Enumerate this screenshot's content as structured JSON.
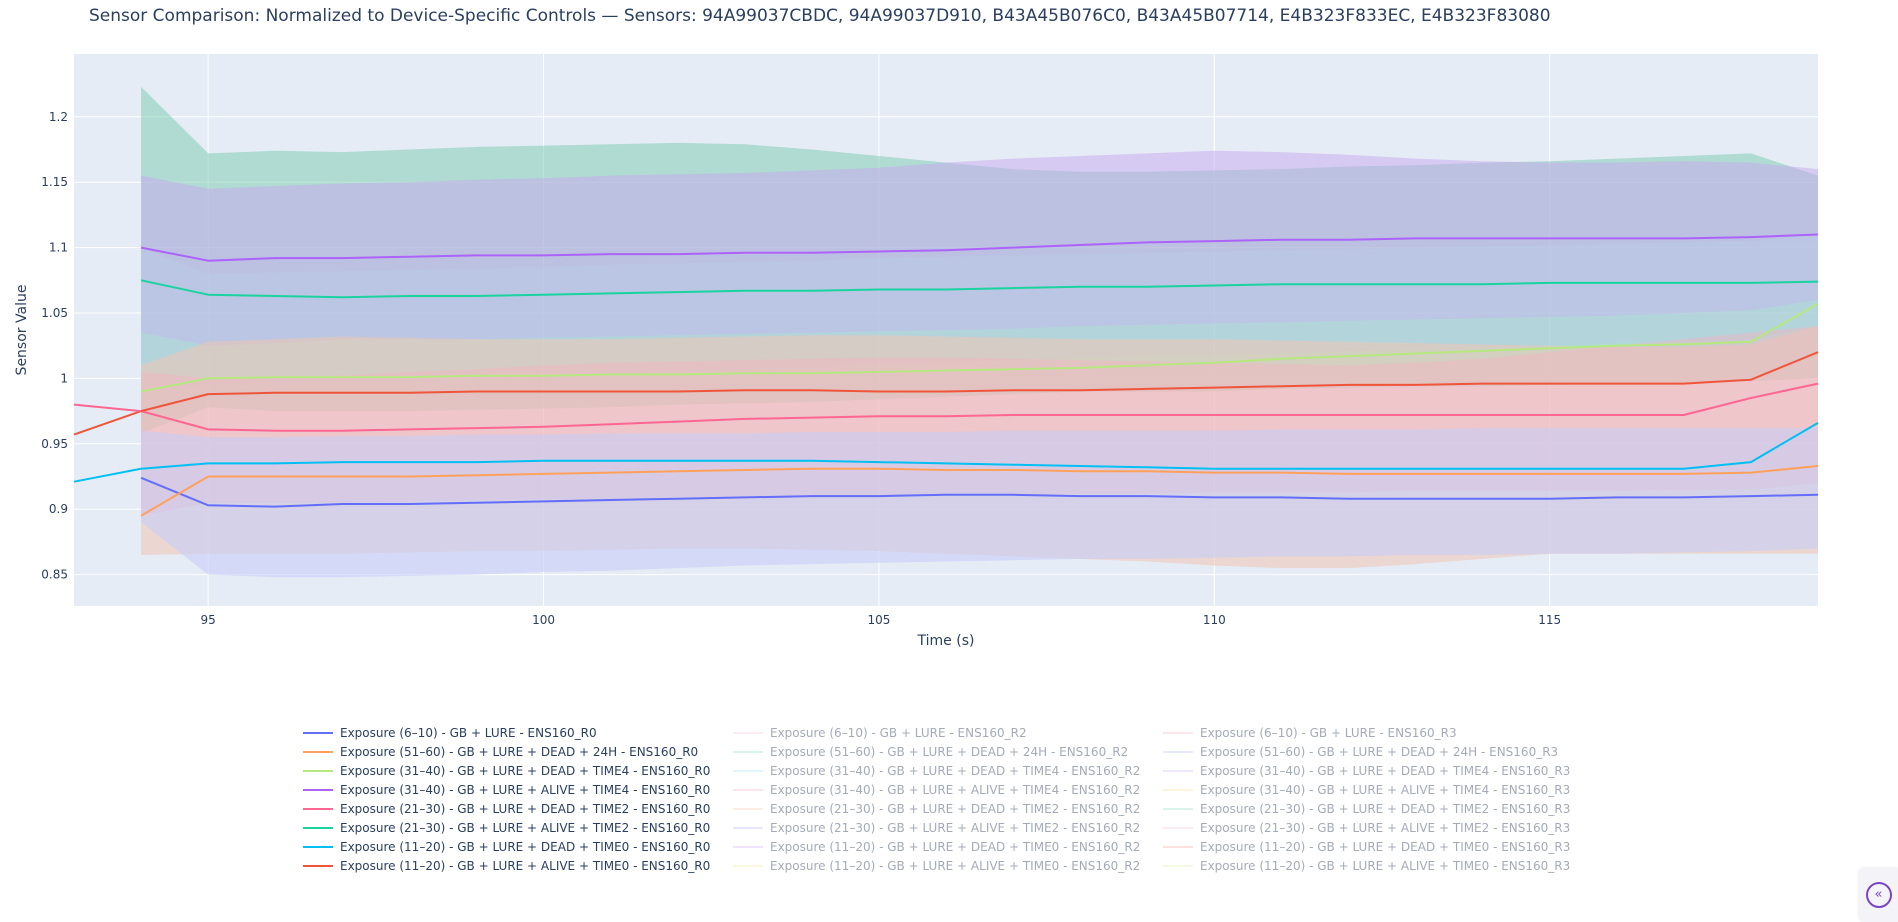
{
  "chart_data": {
    "type": "line",
    "title": "Sensor Comparison: Normalized to Device-Specific Controls — Sensors: 94A99037CBDC, 94A99037D910, B43A45B076C0, B43A45B07714, E4B323F833EC, E4B323F83080",
    "xlabel": "Time (s)",
    "ylabel": "Sensor Value",
    "xlim": [
      93,
      119
    ],
    "ylim": [
      0.826,
      1.248
    ],
    "xticks": [
      95,
      100,
      105,
      110,
      115
    ],
    "xtick_labels": [
      "95",
      "100",
      "105",
      "110",
      "115"
    ],
    "yticks": [
      0.85,
      0.9,
      0.95,
      1.0,
      1.05,
      1.1,
      1.15,
      1.2
    ],
    "ytick_labels": [
      "0.85",
      "0.9",
      "0.95",
      "1",
      "1.05",
      "1.1",
      "1.15",
      "1.2"
    ],
    "grid": true,
    "legend_position": "bottom",
    "x": [
      94,
      95,
      96,
      97,
      98,
      99,
      100,
      101,
      102,
      103,
      104,
      105,
      106,
      107,
      108,
      109,
      110,
      111,
      112,
      113,
      114,
      115,
      116,
      117,
      118,
      119
    ],
    "bands": [
      {
        "color": "#7cc9ad",
        "opacity": 0.5,
        "upper": [
          1.223,
          1.172,
          1.174,
          1.173,
          1.175,
          1.177,
          1.178,
          1.179,
          1.18,
          1.179,
          1.175,
          1.17,
          1.165,
          1.16,
          1.158,
          1.158,
          1.159,
          1.16,
          1.162,
          1.163,
          1.165,
          1.166,
          1.168,
          1.17,
          1.172,
          1.155
        ],
        "lower": [
          0.958,
          0.978,
          0.975,
          0.975,
          0.975,
          0.976,
          0.977,
          0.978,
          0.98,
          0.981,
          0.982,
          0.984,
          0.986,
          0.988,
          0.99,
          0.99,
          0.99,
          0.992,
          0.993,
          0.994,
          0.994,
          0.995,
          0.996,
          0.997,
          0.998,
          1.0
        ]
      },
      {
        "color": "#c8a8f0",
        "opacity": 0.5,
        "upper": [
          1.155,
          1.145,
          1.147,
          1.149,
          1.15,
          1.152,
          1.153,
          1.155,
          1.156,
          1.157,
          1.159,
          1.161,
          1.165,
          1.168,
          1.17,
          1.172,
          1.174,
          1.173,
          1.171,
          1.168,
          1.166,
          1.165,
          1.165,
          1.166,
          1.165,
          1.16
        ],
        "lower": [
          1.035,
          1.025,
          1.027,
          1.03,
          1.03,
          1.03,
          1.031,
          1.032,
          1.033,
          1.034,
          1.035,
          1.036,
          1.037,
          1.038,
          1.04,
          1.041,
          1.042,
          1.043,
          1.044,
          1.045,
          1.046,
          1.047,
          1.048,
          1.05,
          1.052,
          1.06
        ]
      },
      {
        "color": "#b8cde6",
        "opacity": 0.45,
        "upper": [
          1.1,
          1.08,
          1.081,
          1.082,
          1.083,
          1.084,
          1.085,
          1.087,
          1.088,
          1.089,
          1.09,
          1.092,
          1.093,
          1.094,
          1.095,
          1.096,
          1.097,
          1.098,
          1.099,
          1.1,
          1.101,
          1.102,
          1.103,
          1.104,
          1.105,
          1.11
        ],
        "lower": [
          0.99,
          0.995,
          0.996,
          0.997,
          0.998,
          1.0,
          1.001,
          1.003,
          1.005,
          1.007,
          1.009,
          1.011,
          1.012,
          1.014,
          1.016,
          1.017,
          1.018,
          1.019,
          1.021,
          1.022,
          1.023,
          1.025,
          1.027,
          1.028,
          1.03,
          1.04
        ]
      },
      {
        "color": "#f1c4b3",
        "opacity": 0.55,
        "upper": [
          1.01,
          1.028,
          1.03,
          1.032,
          1.031,
          1.03,
          1.03,
          1.03,
          1.031,
          1.032,
          1.033,
          1.033,
          1.032,
          1.031,
          1.03,
          1.03,
          1.03,
          1.029,
          1.028,
          1.027,
          1.026,
          1.025,
          1.024,
          1.024,
          1.026,
          1.04
        ],
        "lower": [
          0.865,
          0.866,
          0.866,
          0.866,
          0.867,
          0.868,
          0.868,
          0.869,
          0.87,
          0.87,
          0.869,
          0.868,
          0.866,
          0.864,
          0.862,
          0.86,
          0.857,
          0.855,
          0.855,
          0.858,
          0.862,
          0.866,
          0.866,
          0.866,
          0.866,
          0.866
        ]
      },
      {
        "color": "#f5b4c0",
        "opacity": 0.45,
        "upper": [
          1.005,
          1.0,
          1.0,
          1.002,
          1.005,
          1.007,
          1.01,
          1.012,
          1.013,
          1.014,
          1.015,
          1.016,
          1.016,
          1.015,
          1.014,
          1.013,
          1.012,
          1.011,
          1.01,
          1.012,
          1.015,
          1.02,
          1.025,
          1.03,
          1.035,
          1.04
        ],
        "lower": [
          0.895,
          0.905,
          0.905,
          0.905,
          0.906,
          0.907,
          0.908,
          0.908,
          0.909,
          0.909,
          0.91,
          0.91,
          0.911,
          0.911,
          0.912,
          0.912,
          0.913,
          0.913,
          0.913,
          0.914,
          0.914,
          0.914,
          0.914,
          0.915,
          0.915,
          0.92
        ]
      },
      {
        "color": "#c6cdf6",
        "opacity": 0.6,
        "upper": [
          0.96,
          0.955,
          0.955,
          0.956,
          0.956,
          0.957,
          0.957,
          0.958,
          0.958,
          0.958,
          0.959,
          0.959,
          0.959,
          0.96,
          0.96,
          0.96,
          0.96,
          0.961,
          0.961,
          0.961,
          0.962,
          0.962,
          0.962,
          0.962,
          0.962,
          0.962
        ],
        "lower": [
          0.89,
          0.85,
          0.848,
          0.848,
          0.849,
          0.85,
          0.852,
          0.853,
          0.855,
          0.857,
          0.858,
          0.859,
          0.86,
          0.861,
          0.862,
          0.862,
          0.863,
          0.864,
          0.864,
          0.865,
          0.865,
          0.866,
          0.866,
          0.867,
          0.868,
          0.87
        ]
      }
    ],
    "series": [
      {
        "name": "Exposure (6–10) - GB + LURE - ENS160_R0",
        "color": "#636efa",
        "visible": true,
        "y": [
          0.924,
          0.903,
          0.902,
          0.904,
          0.904,
          0.905,
          0.906,
          0.907,
          0.908,
          0.909,
          0.91,
          0.91,
          0.911,
          0.911,
          0.91,
          0.91,
          0.909,
          0.909,
          0.908,
          0.908,
          0.908,
          0.908,
          0.909,
          0.909,
          0.91,
          0.911
        ]
      },
      {
        "name": "Exposure (51–60) - GB + LURE + DEAD + 24H - ENS160_R0",
        "color": "#ffa15a",
        "visible": true,
        "y": [
          0.895,
          0.925,
          0.925,
          0.925,
          0.925,
          0.926,
          0.927,
          0.928,
          0.929,
          0.93,
          0.931,
          0.931,
          0.93,
          0.93,
          0.929,
          0.929,
          0.928,
          0.928,
          0.927,
          0.927,
          0.927,
          0.927,
          0.927,
          0.927,
          0.928,
          0.933
        ]
      },
      {
        "name": "Exposure (31–40) - GB + LURE + DEAD + TIME4 - ENS160_R0",
        "color": "#b6e880",
        "visible": true,
        "y": [
          0.99,
          1.0,
          1.001,
          1.001,
          1.001,
          1.002,
          1.002,
          1.003,
          1.003,
          1.004,
          1.004,
          1.005,
          1.006,
          1.007,
          1.008,
          1.01,
          1.012,
          1.015,
          1.017,
          1.019,
          1.021,
          1.023,
          1.025,
          1.026,
          1.028,
          1.057
        ]
      },
      {
        "name": "Exposure (31–40) - GB + LURE + ALIVE + TIME4 - ENS160_R0",
        "color": "#ab63fa",
        "visible": true,
        "y": [
          1.1,
          1.09,
          1.092,
          1.092,
          1.093,
          1.094,
          1.094,
          1.095,
          1.095,
          1.096,
          1.096,
          1.097,
          1.098,
          1.1,
          1.102,
          1.104,
          1.105,
          1.106,
          1.106,
          1.107,
          1.107,
          1.107,
          1.107,
          1.107,
          1.108,
          1.11
        ]
      },
      {
        "name": "Exposure (21–30) - GB + LURE + DEAD + TIME2 - ENS160_R0",
        "color": "#ff6692",
        "visible": true,
        "y": [
          0.975,
          0.961,
          0.96,
          0.96,
          0.961,
          0.962,
          0.963,
          0.965,
          0.967,
          0.969,
          0.97,
          0.971,
          0.971,
          0.972,
          0.972,
          0.972,
          0.972,
          0.972,
          0.972,
          0.972,
          0.972,
          0.972,
          0.972,
          0.972,
          0.985,
          0.996
        ]
      },
      {
        "name": "Exposure (21–30) - GB + LURE + ALIVE + TIME2 - ENS160_R0",
        "color": "#19d3a0",
        "visible": true,
        "y": [
          1.075,
          1.064,
          1.063,
          1.062,
          1.063,
          1.063,
          1.064,
          1.065,
          1.066,
          1.067,
          1.067,
          1.068,
          1.068,
          1.069,
          1.07,
          1.07,
          1.071,
          1.072,
          1.072,
          1.072,
          1.072,
          1.073,
          1.073,
          1.073,
          1.073,
          1.074
        ]
      },
      {
        "name": "Exposure (11–20) - GB + LURE + DEAD + TIME0 - ENS160_R0",
        "color": "#00c0f3",
        "visible": true,
        "y": [
          0.931,
          0.935,
          0.935,
          0.936,
          0.936,
          0.936,
          0.937,
          0.937,
          0.937,
          0.937,
          0.937,
          0.936,
          0.935,
          0.934,
          0.933,
          0.932,
          0.931,
          0.931,
          0.931,
          0.931,
          0.931,
          0.931,
          0.931,
          0.931,
          0.936,
          0.966
        ]
      },
      {
        "name": "Exposure (11–20) - GB + LURE + ALIVE + TIME0 - ENS160_R0",
        "color": "#ef553b",
        "visible": true,
        "y": [
          0.975,
          0.988,
          0.989,
          0.989,
          0.989,
          0.99,
          0.99,
          0.99,
          0.99,
          0.991,
          0.991,
          0.99,
          0.99,
          0.991,
          0.991,
          0.992,
          0.993,
          0.994,
          0.995,
          0.995,
          0.996,
          0.996,
          0.996,
          0.996,
          0.999,
          1.02
        ]
      },
      {
        "name": "Exposure (6–10) - GB + LURE - ENS160_R2",
        "color": "#f9c8ea",
        "visible": false
      },
      {
        "name": "Exposure (51–60) - GB + LURE + DEAD + 24H - ENS160_R2",
        "color": "#8fe3c8",
        "visible": false
      },
      {
        "name": "Exposure (31–40) - GB + LURE + DEAD + TIME4 - ENS160_R2",
        "color": "#a6e9f5",
        "visible": false
      },
      {
        "name": "Exposure (31–40) - GB + LURE + ALIVE + TIME4 - ENS160_R2",
        "color": "#f6b6ce",
        "visible": false
      },
      {
        "name": "Exposure (21–30) - GB + LURE + DEAD + TIME2 - ENS160_R2",
        "color": "#f8c9ae",
        "visible": false
      },
      {
        "name": "Exposure (21–30) - GB + LURE + ALIVE + TIME2 - ENS160_R2",
        "color": "#b6baf7",
        "visible": false
      },
      {
        "name": "Exposure (11–20) - GB + LURE + DEAD + TIME0 - ENS160_R2",
        "color": "#d2b2f3",
        "visible": false
      },
      {
        "name": "Exposure (11–20) - GB + LURE + ALIVE + TIME0 - ENS160_R2",
        "color": "#f7e5a4",
        "visible": false
      },
      {
        "name": "Exposure (6–10) - GB + LURE - ENS160_R3",
        "color": "#f7b7c5",
        "visible": false
      },
      {
        "name": "Exposure (51–60) - GB + LURE + DEAD + 24H - ENS160_R3",
        "color": "#b7c2f5",
        "visible": false
      },
      {
        "name": "Exposure (31–40) - GB + LURE + DEAD + TIME4 - ENS160_R3",
        "color": "#d6b7f5",
        "visible": false
      },
      {
        "name": "Exposure (31–40) - GB + LURE + ALIVE + TIME4 - ENS160_R3",
        "color": "#f7df9f",
        "visible": false
      },
      {
        "name": "Exposure (21–30) - GB + LURE + DEAD + TIME2 - ENS160_R3",
        "color": "#95e0c7",
        "visible": false
      },
      {
        "name": "Exposure (21–30) - GB + LURE + ALIVE + TIME2 - ENS160_R3",
        "color": "#f7c4e3",
        "visible": false
      },
      {
        "name": "Exposure (11–20) - GB + LURE + DEAD + TIME0 - ENS160_R3",
        "color": "#f6a9a6",
        "visible": false
      },
      {
        "name": "Exposure (11–20) - GB + LURE + ALIVE + TIME0 - ENS160_R3",
        "color": "#d8efb5",
        "visible": false
      }
    ],
    "extra_segments": [
      {
        "color": "#00c0f3",
        "points": [
          [
            93,
            0.921
          ],
          [
            94,
            0.931
          ]
        ]
      },
      {
        "color": "#ef553b",
        "points": [
          [
            93,
            0.957
          ],
          [
            94,
            0.975
          ]
        ]
      },
      {
        "color": "#ff6692",
        "points": [
          [
            93,
            0.98
          ],
          [
            94,
            0.975
          ]
        ]
      }
    ]
  },
  "ui": {
    "collapse_icon": "double-chevron-left-icon"
  }
}
